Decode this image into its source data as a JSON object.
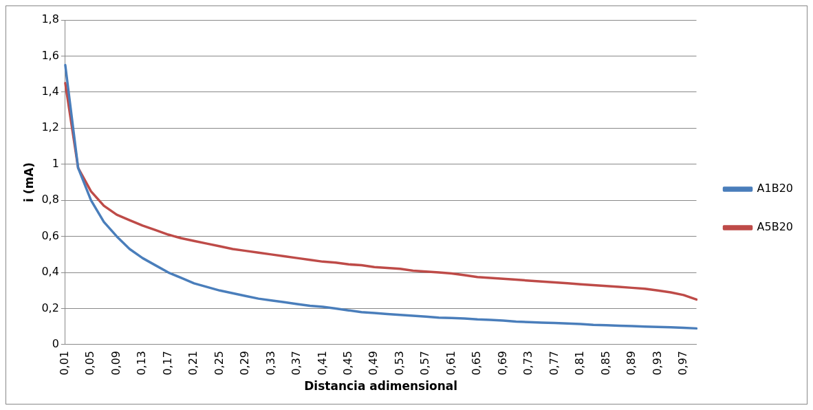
{
  "chart_data": {
    "type": "line",
    "xlabel": "Distancia adimensional",
    "ylabel": "i (mA)",
    "categories": [
      "0,01",
      null,
      "0,05",
      null,
      "0,09",
      null,
      "0,13",
      null,
      "0,17",
      null,
      "0,21",
      null,
      "0,25",
      null,
      "0,29",
      null,
      "0,33",
      null,
      "0,37",
      null,
      "0,41",
      null,
      "0,45",
      null,
      "0,49",
      null,
      "0,53",
      null,
      "0,57",
      null,
      "0,61",
      null,
      "0,65",
      null,
      "0,69",
      null,
      "0,73",
      null,
      "0,77",
      null,
      "0,81",
      null,
      "0,85",
      null,
      "0,89",
      null,
      "0,93",
      null,
      "0,97",
      null
    ],
    "series": [
      {
        "name": "A1B20",
        "color": "#4a7ebb",
        "values": [
          1.55,
          0.98,
          0.8,
          0.68,
          0.6,
          0.53,
          0.48,
          0.44,
          0.4,
          0.37,
          0.34,
          0.32,
          0.3,
          0.285,
          0.27,
          0.255,
          0.245,
          0.235,
          0.225,
          0.215,
          0.21,
          0.2,
          0.19,
          0.18,
          0.175,
          0.17,
          0.165,
          0.16,
          0.155,
          0.15,
          0.148,
          0.145,
          0.14,
          0.137,
          0.133,
          0.128,
          0.125,
          0.122,
          0.12,
          0.117,
          0.114,
          0.11,
          0.108,
          0.105,
          0.103,
          0.1,
          0.098,
          0.096,
          0.093,
          0.09
        ]
      },
      {
        "name": "A5B20",
        "color": "#be4b48",
        "values": [
          1.45,
          0.98,
          0.85,
          0.77,
          0.72,
          0.69,
          0.66,
          0.635,
          0.61,
          0.59,
          0.575,
          0.56,
          0.545,
          0.53,
          0.52,
          0.51,
          0.5,
          0.49,
          0.48,
          0.47,
          0.46,
          0.455,
          0.445,
          0.44,
          0.43,
          0.425,
          0.42,
          0.41,
          0.405,
          0.4,
          0.395,
          0.385,
          0.375,
          0.37,
          0.365,
          0.36,
          0.355,
          0.35,
          0.345,
          0.34,
          0.335,
          0.33,
          0.325,
          0.32,
          0.315,
          0.31,
          0.3,
          0.29,
          0.275,
          0.25
        ]
      }
    ],
    "ylim": [
      0,
      1.8
    ],
    "yticks": [
      0,
      {
        "value": 0.2,
        "label": "0,2"
      },
      {
        "value": 0.4,
        "label": "0,4"
      },
      {
        "value": 0.6,
        "label": "0,6"
      },
      {
        "value": 0.8,
        "label": "0,8"
      },
      1,
      {
        "value": 1.2,
        "label": "1,2"
      },
      {
        "value": 1.4,
        "label": "1,4"
      },
      {
        "value": 1.6,
        "label": "1,6"
      },
      {
        "value": 1.8,
        "label": "1,8"
      }
    ],
    "grid": "y",
    "legend": "right",
    "marker": "none",
    "line_style": "solid"
  }
}
